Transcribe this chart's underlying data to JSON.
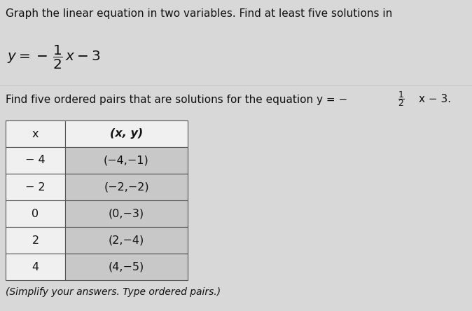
{
  "title_line1": "Graph the linear equation in two variables. Find at least five solutions in",
  "find_text_prefix": "Find five ordered pairs that are solutions for the equation y = −",
  "find_text_suffix": "x − 3.",
  "table_header": [
    "x",
    "(x, y)"
  ],
  "table_rows": [
    [
      "− 4",
      "(−4,−1)"
    ],
    [
      "− 2",
      "(−2,−2)"
    ],
    [
      "0",
      "(0,−3)"
    ],
    [
      "2",
      "(2,−4)"
    ],
    [
      "4",
      "(4,−5)"
    ]
  ],
  "footer_text": "(Simplify your answers. Type ordered pairs.)",
  "bg_color": "#d8d8d8",
  "table_left_bg": "#f0f0f0",
  "table_right_bg": "#c8c8c8",
  "table_header_bg": "#f0f0f0",
  "table_border_color": "#555555",
  "text_color": "#111111",
  "font_size_title": 11.0,
  "font_size_eq": 13.5,
  "font_size_find": 11.0,
  "font_size_table": 11.5,
  "font_size_footer": 10.0,
  "figw": 6.74,
  "figh": 4.44,
  "dpi": 100
}
